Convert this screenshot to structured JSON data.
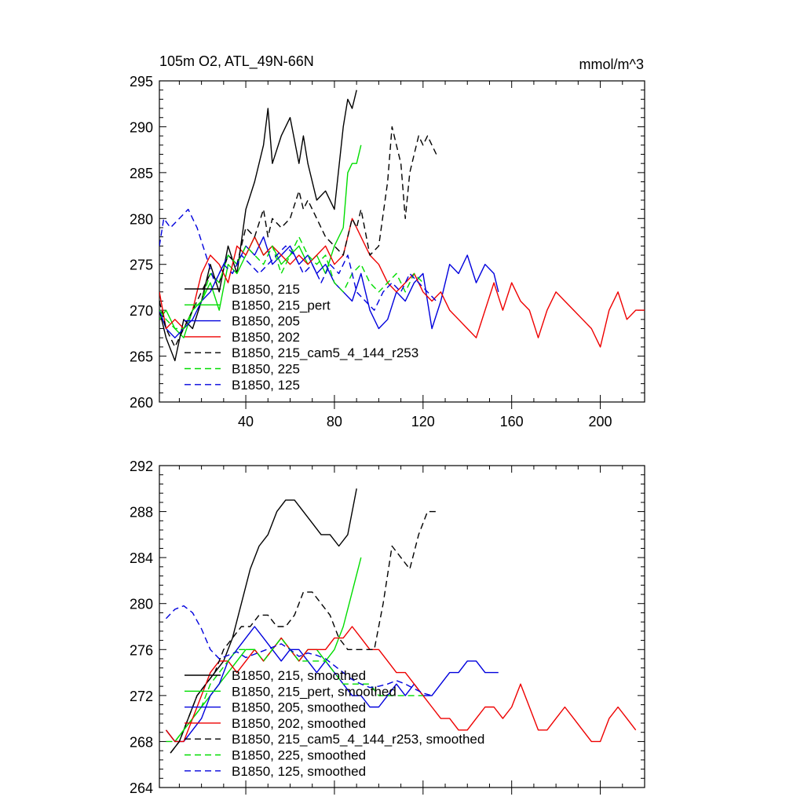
{
  "figure": {
    "title_left": "105m O2, ATL_49N-66N",
    "title_right": "mmol/m^3"
  },
  "legend_styles": [
    {
      "color": "#000000",
      "dash": ""
    },
    {
      "color": "#00dd00",
      "dash": ""
    },
    {
      "color": "#0000dd",
      "dash": ""
    },
    {
      "color": "#ee0000",
      "dash": ""
    },
    {
      "color": "#000000",
      "dash": "8,5"
    },
    {
      "color": "#00dd00",
      "dash": "8,5"
    },
    {
      "color": "#0000dd",
      "dash": "8,5"
    }
  ],
  "chart_data": [
    {
      "type": "line",
      "title": "105m O2, ATL_49N-66N",
      "units": "mmol/m^3",
      "xlim": [
        1,
        220
      ],
      "ylim": [
        260,
        295
      ],
      "yticks": [
        260,
        265,
        270,
        275,
        280,
        285,
        290,
        295
      ],
      "xticks": [
        40,
        80,
        120,
        160,
        200
      ],
      "legend": [
        "B1850, 215",
        "B1850, 215_pert",
        "B1850, 205",
        "B1850, 202",
        "B1850, 215_cam5_4_144_r253",
        "B1850, 225",
        "B1850, 125"
      ],
      "series": [
        {
          "name": "B1850, 215",
          "x": [
            1,
            4,
            8,
            12,
            16,
            20,
            24,
            28,
            32,
            36,
            40,
            44,
            48,
            50,
            52,
            56,
            60,
            64,
            66,
            68,
            72,
            76,
            80,
            84,
            86,
            88,
            90
          ],
          "y": [
            270,
            267,
            264.5,
            269,
            268,
            271,
            275,
            272,
            277,
            274,
            281,
            284,
            288,
            292,
            286,
            289,
            291,
            286,
            289,
            286,
            282,
            283,
            281,
            290,
            293,
            292,
            294
          ]
        },
        {
          "name": "B1850, 215_pert",
          "x": [
            1,
            4,
            8,
            12,
            16,
            20,
            24,
            28,
            32,
            36,
            40,
            44,
            48,
            52,
            56,
            60,
            64,
            68,
            72,
            76,
            80,
            84,
            86,
            88,
            90,
            92
          ],
          "y": [
            269,
            270,
            268,
            267,
            270,
            271,
            273,
            270,
            275,
            274,
            276,
            278,
            276,
            277,
            275,
            276,
            277,
            275,
            276,
            274,
            277,
            279,
            285,
            286,
            286,
            288
          ]
        },
        {
          "name": "B1850, 205",
          "x": [
            1,
            4,
            8,
            12,
            16,
            20,
            24,
            28,
            32,
            36,
            40,
            44,
            48,
            52,
            56,
            60,
            64,
            68,
            72,
            76,
            80,
            84,
            88,
            92,
            96,
            100,
            104,
            108,
            112,
            116,
            120,
            124,
            128,
            132,
            136,
            140,
            144,
            148,
            152,
            154
          ],
          "y": [
            270,
            268,
            267,
            268,
            269,
            271,
            272,
            274,
            276,
            275,
            277,
            276,
            278,
            275,
            276,
            277,
            275,
            276,
            274,
            275,
            273,
            272,
            271,
            274,
            270,
            268,
            269,
            272,
            271,
            273,
            274,
            268,
            271,
            275,
            274,
            276,
            273,
            275,
            274,
            272
          ]
        },
        {
          "name": "B1850, 202",
          "x": [
            1,
            4,
            8,
            12,
            16,
            20,
            24,
            28,
            32,
            36,
            40,
            44,
            48,
            52,
            56,
            60,
            64,
            68,
            72,
            76,
            80,
            84,
            88,
            92,
            96,
            100,
            104,
            108,
            112,
            116,
            120,
            124,
            128,
            132,
            136,
            140,
            144,
            148,
            152,
            156,
            160,
            164,
            168,
            172,
            176,
            180,
            184,
            188,
            192,
            196,
            200,
            204,
            208,
            212,
            216,
            220
          ],
          "y": [
            272,
            268,
            269,
            268,
            270,
            274,
            276,
            275,
            273,
            277,
            276,
            278,
            276,
            277,
            276,
            275,
            276,
            275,
            276,
            277,
            275,
            276,
            280,
            278,
            276,
            275,
            273,
            272,
            273,
            274,
            272,
            271,
            272,
            270,
            269,
            268,
            267,
            270,
            273,
            270,
            273,
            271,
            270,
            267,
            270,
            272,
            271,
            270,
            269,
            268,
            266,
            270,
            272,
            269,
            270,
            270
          ]
        },
        {
          "name": "B1850, 215_cam5_4_144_r253",
          "x": [
            1,
            4,
            8,
            12,
            16,
            20,
            24,
            28,
            32,
            36,
            40,
            44,
            48,
            50,
            52,
            56,
            60,
            64,
            66,
            68,
            72,
            76,
            80,
            84,
            88,
            90,
            92,
            96,
            100,
            104,
            106,
            108,
            110,
            112,
            114,
            116,
            118,
            120,
            122,
            124,
            126
          ],
          "y": [
            271,
            268,
            266,
            268,
            270,
            272,
            274,
            273,
            276,
            275,
            279,
            278,
            281,
            278,
            280,
            279,
            280,
            283,
            281,
            282,
            280,
            278,
            277,
            276,
            280,
            279,
            281,
            276,
            277,
            284,
            290,
            288,
            286,
            280,
            285,
            287,
            289,
            288,
            289,
            288,
            287
          ]
        },
        {
          "name": "B1850, 225",
          "x": [
            1,
            4,
            8,
            12,
            16,
            20,
            24,
            28,
            32,
            36,
            40,
            44,
            48,
            52,
            56,
            60,
            64,
            68,
            72,
            76,
            80,
            84,
            88,
            92,
            96,
            100,
            104,
            108,
            112,
            116,
            120
          ],
          "y": [
            270,
            269,
            268,
            268,
            270,
            271,
            274,
            273,
            276,
            275,
            277,
            276,
            275,
            277,
            274,
            276,
            278,
            276,
            275,
            276,
            273,
            272,
            274,
            275,
            273,
            272,
            273,
            274,
            272,
            274,
            273
          ]
        },
        {
          "name": "B1850, 125",
          "x": [
            1,
            3,
            6,
            10,
            14,
            18,
            22,
            26,
            30,
            34,
            38,
            42,
            46,
            50,
            54,
            58,
            62,
            66,
            70,
            74,
            78,
            82,
            86,
            90,
            94,
            98,
            102,
            106,
            110,
            114,
            118,
            122,
            126
          ],
          "y": [
            277,
            280,
            279,
            280,
            281,
            279,
            276,
            273,
            275,
            274,
            276,
            275,
            274,
            275,
            276,
            277,
            276,
            274,
            275,
            273,
            275,
            274,
            276,
            272,
            271,
            270,
            272,
            273,
            272,
            274,
            273,
            272,
            271
          ]
        }
      ]
    },
    {
      "type": "line",
      "title": "",
      "xlim": [
        1,
        220
      ],
      "ylim": [
        264,
        292
      ],
      "yticks": [
        264,
        268,
        272,
        276,
        280,
        284,
        288,
        292
      ],
      "xticks": [
        40,
        80,
        120,
        160,
        200
      ],
      "legend": [
        "B1850, 215, smoothed",
        "B1850, 215_pert, smoothed",
        "B1850, 205, smoothed",
        "B1850, 202, smoothed",
        "B1850, 215_cam5_4_144_r253, smoothed",
        "B1850, 225, smoothed",
        "B1850, 125, smoothed"
      ],
      "series": [
        {
          "name": "B1850, 215, smoothed",
          "x": [
            6,
            10,
            14,
            18,
            22,
            26,
            30,
            34,
            38,
            42,
            46,
            50,
            54,
            58,
            62,
            66,
            70,
            74,
            78,
            82,
            86,
            90
          ],
          "y": [
            267,
            268,
            270,
            272,
            273,
            274,
            275,
            277,
            280,
            283,
            285,
            286,
            288,
            289,
            289,
            288,
            287,
            286,
            286,
            285,
            286,
            290
          ]
        },
        {
          "name": "B1850, 215_pert, smoothed",
          "x": [
            4,
            8,
            12,
            16,
            20,
            24,
            28,
            32,
            36,
            40,
            44,
            48,
            52,
            56,
            60,
            64,
            68,
            72,
            76,
            80,
            84,
            88,
            92
          ],
          "y": [
            269,
            268,
            269,
            270,
            271,
            272,
            273,
            274,
            275,
            276,
            276,
            275,
            276,
            277,
            276,
            275,
            276,
            276,
            275,
            276,
            278,
            281,
            284
          ]
        },
        {
          "name": "B1850, 205, smoothed",
          "x": [
            4,
            8,
            12,
            16,
            20,
            24,
            28,
            32,
            36,
            40,
            44,
            48,
            52,
            56,
            60,
            64,
            68,
            72,
            76,
            80,
            84,
            88,
            92,
            96,
            100,
            104,
            108,
            112,
            116,
            120,
            124,
            128,
            132,
            136,
            140,
            144,
            148,
            152,
            154
          ],
          "y": [
            269,
            268,
            268,
            269,
            270,
            272,
            273,
            275,
            276,
            277,
            278,
            277,
            276,
            275,
            276,
            276,
            275,
            274,
            275,
            274,
            273,
            272,
            272,
            271,
            271,
            272,
            273,
            272,
            273,
            272,
            272,
            273,
            274,
            274,
            275,
            275,
            274,
            274,
            274
          ]
        },
        {
          "name": "B1850, 202, smoothed",
          "x": [
            4,
            8,
            12,
            16,
            20,
            24,
            28,
            32,
            36,
            40,
            44,
            48,
            52,
            56,
            60,
            64,
            68,
            72,
            76,
            80,
            84,
            88,
            92,
            96,
            100,
            104,
            108,
            112,
            116,
            120,
            124,
            128,
            132,
            136,
            140,
            144,
            148,
            152,
            156,
            160,
            164,
            168,
            172,
            176,
            180,
            184,
            188,
            192,
            196,
            200,
            204,
            208,
            212,
            216
          ],
          "y": [
            269,
            268,
            268,
            270,
            272,
            274,
            275,
            275,
            274,
            275,
            276,
            275,
            276,
            277,
            276,
            275,
            276,
            276,
            276,
            277,
            277,
            278,
            277,
            276,
            276,
            275,
            274,
            274,
            273,
            272,
            271,
            270,
            270,
            269,
            269,
            270,
            271,
            271,
            270,
            271,
            273,
            271,
            269,
            269,
            270,
            271,
            270,
            269,
            268,
            268,
            270,
            271,
            270,
            269
          ]
        },
        {
          "name": "B1850, 215_cam5_4_144_r253, smoothed",
          "x": [
            6,
            10,
            14,
            18,
            22,
            26,
            30,
            34,
            38,
            42,
            46,
            50,
            54,
            58,
            62,
            66,
            70,
            74,
            78,
            82,
            86,
            90,
            94,
            98,
            102,
            106,
            110,
            114,
            118,
            122,
            126
          ],
          "y": [
            267,
            268,
            270,
            272,
            273,
            274,
            276,
            277,
            278,
            278,
            279,
            279,
            278,
            278,
            279,
            281,
            281,
            280,
            279,
            277,
            276,
            276,
            276,
            276,
            280,
            285,
            284,
            283,
            286,
            288,
            288
          ]
        },
        {
          "name": "B1850, 225, smoothed",
          "x": [
            4,
            8,
            12,
            16,
            20,
            24,
            28,
            32,
            36,
            40,
            44,
            48,
            52,
            56,
            60,
            64,
            68,
            72,
            76,
            80,
            84,
            88,
            92,
            96,
            100,
            104,
            108,
            112,
            116,
            120
          ],
          "y": [
            268,
            268,
            269,
            270,
            271,
            273,
            274,
            275,
            276,
            276,
            276,
            275,
            276,
            277,
            276,
            275,
            275,
            275,
            275,
            274,
            273,
            273,
            273,
            273,
            272,
            272,
            272,
            272,
            272,
            272
          ]
        },
        {
          "name": "B1850, 125, smoothed",
          "x": [
            4,
            8,
            12,
            16,
            20,
            24,
            28,
            32,
            36,
            40,
            44,
            48,
            52,
            56,
            60,
            64,
            68,
            72,
            76,
            80,
            84,
            88,
            92,
            96,
            100,
            104,
            108,
            112,
            116,
            120,
            124
          ],
          "y": [
            278.7,
            279.5,
            279.8,
            279.2,
            277.8,
            276,
            275.2,
            275.5,
            275.8,
            275.3,
            275.6,
            275.9,
            276.2,
            276.5,
            276,
            275.4,
            275.7,
            275.5,
            275.2,
            274.6,
            274,
            273.4,
            273,
            272.7,
            272.8,
            273,
            273.3,
            273,
            272.6,
            272.2,
            272
          ]
        }
      ]
    }
  ]
}
